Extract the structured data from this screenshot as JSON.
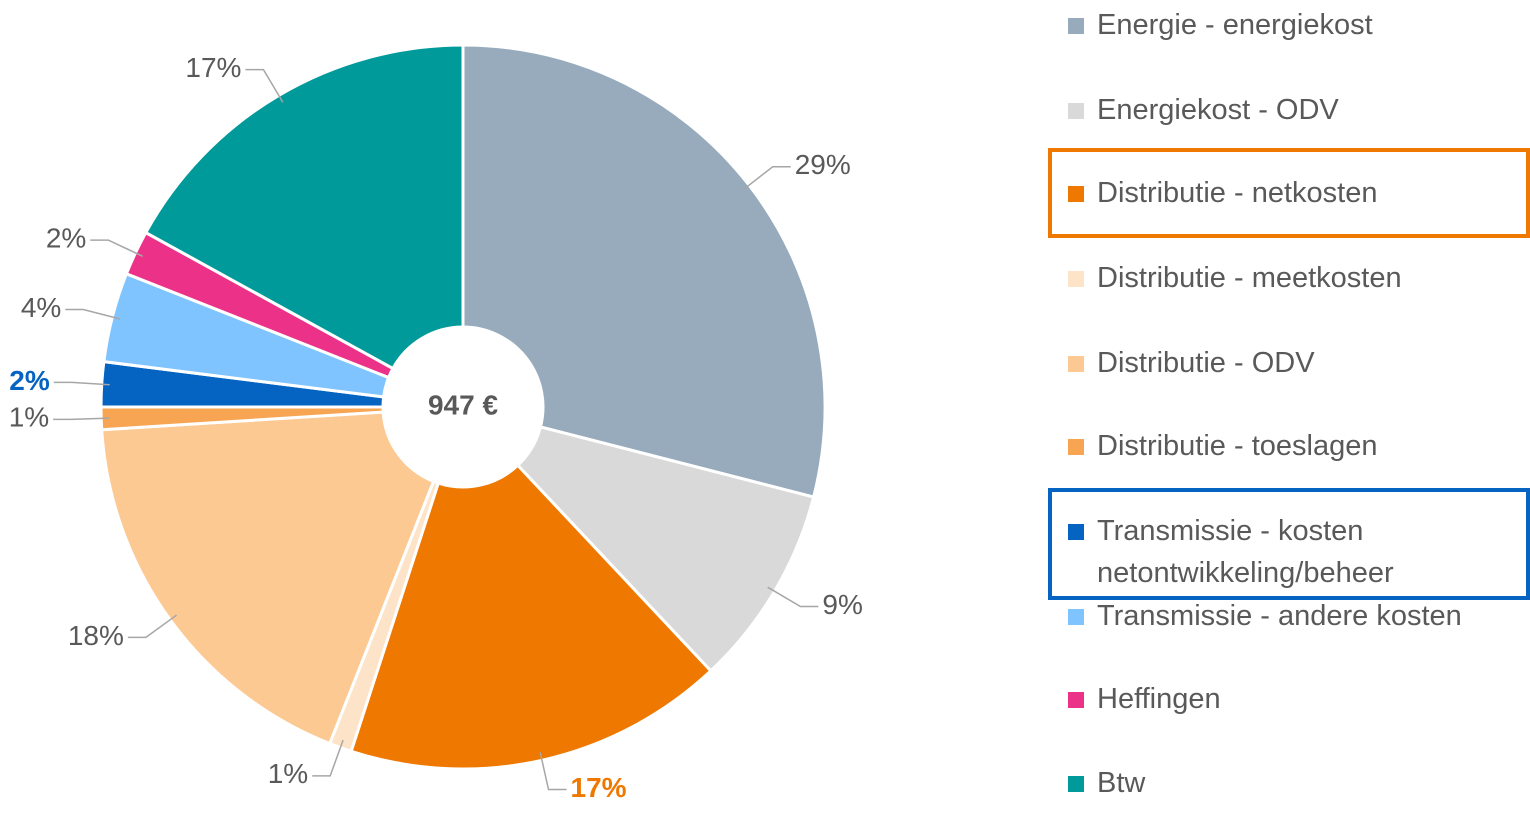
{
  "chart_data": {
    "type": "donut",
    "center_label": "947 €",
    "categories": [
      "Energie - energiekost",
      "Energiekost - ODV",
      "Distributie - netkosten",
      "Distributie - meetkosten",
      "Distributie - ODV",
      "Distributie - toeslagen",
      "Transmissie - kosten netontwikkeling/beheer",
      "Transmissie - andere kosten",
      "Heffingen",
      "Btw"
    ],
    "values": [
      29,
      9,
      17,
      1,
      18,
      1,
      2,
      4,
      2,
      17
    ],
    "value_labels": [
      "29%",
      "9%",
      "17%",
      "1%",
      "18%",
      "1%",
      "2%",
      "4%",
      "2%",
      "17%"
    ],
    "colors": [
      "#97abbd",
      "#d9d9d9",
      "#ee7800",
      "#fde4c8",
      "#fdc993",
      "#f7a553",
      "#0563c1",
      "#80c4ff",
      "#ec3288",
      "#009a9a"
    ],
    "highlighted": [
      false,
      false,
      true,
      false,
      false,
      false,
      true,
      false,
      false,
      false
    ],
    "legend": "right"
  }
}
